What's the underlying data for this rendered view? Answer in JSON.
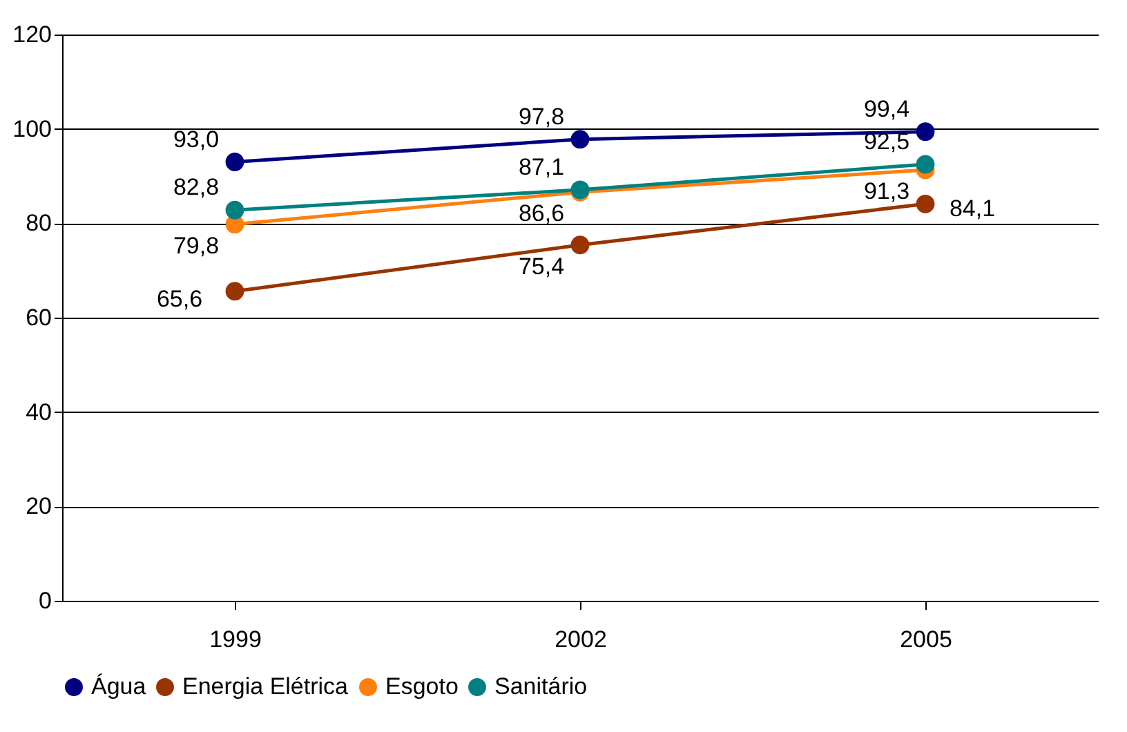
{
  "chart_data": {
    "type": "line",
    "categories": [
      "1999",
      "2002",
      "2005"
    ],
    "series": [
      {
        "name": "Água",
        "color": "#000080",
        "values": [
          93.0,
          97.8,
          99.4
        ],
        "value_labels": [
          "93,0",
          "97,8",
          "99,4"
        ]
      },
      {
        "name": "Energia Elétrica",
        "color": "#993300",
        "values": [
          65.6,
          75.4,
          84.1
        ],
        "value_labels": [
          "65,6",
          "75,4",
          "84,1"
        ]
      },
      {
        "name": "Esgoto",
        "color": "#ff7f0e",
        "values": [
          79.8,
          86.6,
          91.3
        ],
        "value_labels": [
          "79,8",
          "86,6",
          "91,3"
        ]
      },
      {
        "name": "Sanitário",
        "color": "#008080",
        "values": [
          82.8,
          87.1,
          92.5
        ],
        "value_labels": [
          "82,8",
          "87,1",
          "92,5"
        ]
      }
    ],
    "ylim": [
      0,
      120
    ],
    "yticks": [
      0,
      20,
      40,
      60,
      80,
      100,
      120
    ],
    "grid": "y",
    "legend": "bottom",
    "marker": "circle",
    "line_style": "solid"
  }
}
